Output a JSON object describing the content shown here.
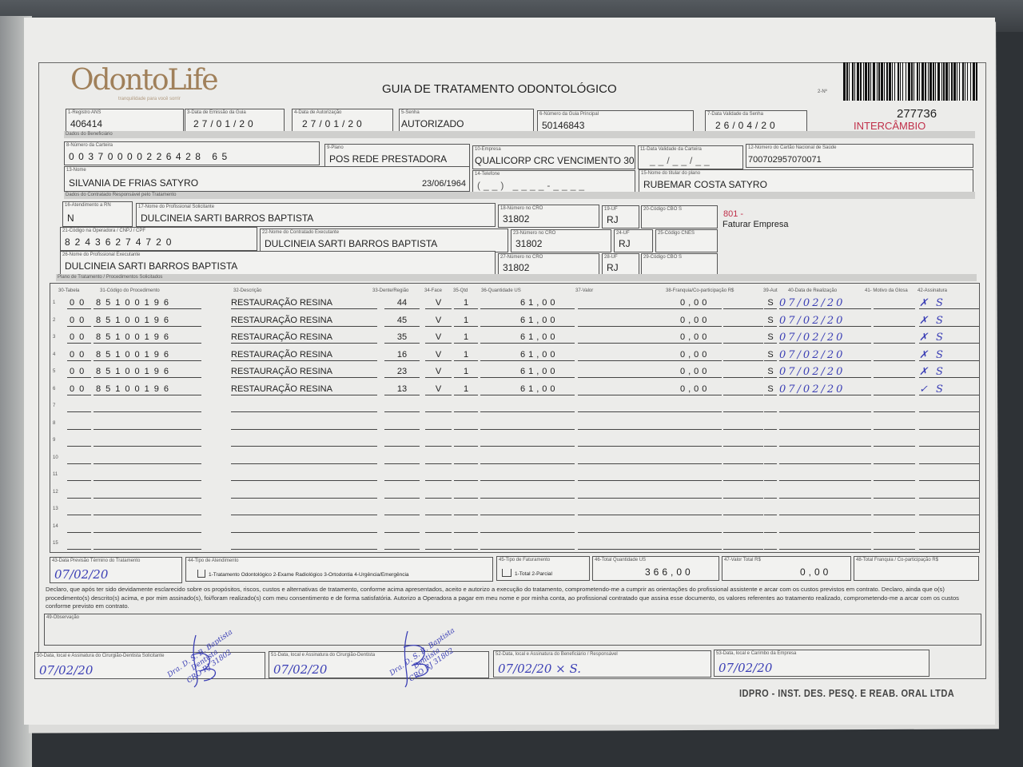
{
  "header": {
    "logo": "OdontoLife",
    "logo_tagline": "tranquilidade para você sorrir",
    "title": "GUIA DE TRATAMENTO ODONTOLÓGICO",
    "guide_no_label": "2-Nº",
    "guide_number": "277736",
    "intercambio": "INTERCÂMBIO",
    "brand_color": "#a0805a",
    "alert_color": "#c0304a"
  },
  "f": {
    "f1": {
      "label": "1-Registro ANS",
      "value": "406414"
    },
    "f3": {
      "label": "3-Data de Emissão da Guia",
      "value": "27/01/20"
    },
    "f4": {
      "label": "4-Data de Autorização",
      "value": "27/01/20"
    },
    "f5": {
      "label": "5-Senha",
      "value": "AUTORIZADO"
    },
    "f6": {
      "label": "6-Número da Guia Principal",
      "value": "50146843"
    },
    "f7": {
      "label": "7-Data Validade da Senha",
      "value": "26/04/20"
    },
    "f8": {
      "label": "8-Número da Carteira",
      "value": "00370000226428 65"
    },
    "f9": {
      "label": "9-Plano",
      "value": "POS REDE PRESTADORA"
    },
    "f10": {
      "label": "10-Empresa",
      "value": "QUALICORP CRC VENCIMENTO 30"
    },
    "f11": {
      "label": "11-Data Validade da Carteira",
      "value": "__/__/__"
    },
    "f12": {
      "label": "12-Número do Cartão Nacional de Saúde",
      "value": "700702957070071"
    },
    "f13": {
      "label": "13-Nome",
      "value": "SILVANIA DE FRIAS SATYRO",
      "birth": "23/06/1964"
    },
    "f14": {
      "label": "14-Telefone",
      "value": "(__) ____-____"
    },
    "f15": {
      "label": "15-Nome do titular do plano",
      "value": "RUBEMAR COSTA SATYRO"
    },
    "f16": {
      "label": "16-Atendimento a RN",
      "value": "N"
    },
    "f17": {
      "label": "17-Nome do Profissional Solicitante",
      "value": "DULCINEIA SARTI BARROS BAPTISTA"
    },
    "f18": {
      "label": "18-Número no CRO",
      "value": "31802"
    },
    "f19": {
      "label": "19-UF",
      "value": "RJ"
    },
    "f20": {
      "label": "20-Código CBO S",
      "value": ""
    },
    "f21": {
      "label": "21-Código na Operadora / CNPJ / CPF",
      "value": "82436274720"
    },
    "f22": {
      "label": "22-Nome do Contratado Executante",
      "value": "DULCINEIA SARTI BARROS BAPTISTA"
    },
    "f23": {
      "label": "23-Número no CRO",
      "value": "31802"
    },
    "f24": {
      "label": "24-UF",
      "value": "RJ"
    },
    "f25": {
      "label": "25-Código CNES",
      "value": ""
    },
    "f26": {
      "label": "26-Nome do Profissional Executante",
      "value": "DULCINEIA SARTI BARROS BAPTISTA"
    },
    "f27": {
      "label": "27-Número no CRO",
      "value": "31802"
    },
    "f28": {
      "label": "28-UF",
      "value": "RJ"
    },
    "f29": {
      "label": "29-Código CBO S",
      "value": ""
    }
  },
  "billing": {
    "code": "801 -",
    "text": "Faturar Empresa"
  },
  "sections": {
    "beneficiario": "Dados do Beneficiário",
    "contratado": "Dados do Contratado Responsável pelo Tratamento",
    "plano": "Plano de Tratamento / Procedimentos Solicitados"
  },
  "procedures": {
    "columns": [
      "30-Tabela",
      "31-Código do Procedimento",
      "32-Descrição",
      "33-Dente/Região",
      "34-Face",
      "35-Qtd",
      "36-Quantidade US",
      "37-Valor",
      "38-Franquia/Co-participação R$",
      "39-Aut",
      "40-Data de Realização",
      "41- Motivo da Glosa",
      "42-Assinatura"
    ],
    "rows": [
      {
        "tabela": "00",
        "codigo": "85100196",
        "descricao": "RESTAURAÇÃO RESINA",
        "dente": "44",
        "face": "V",
        "qtd": "1",
        "us": "61,00",
        "valor": "0,00",
        "franquia": "",
        "aut": "S",
        "data": "07/02/20",
        "glosa": "",
        "assinatura": "✗ S"
      },
      {
        "tabela": "00",
        "codigo": "85100196",
        "descricao": "RESTAURAÇÃO RESINA",
        "dente": "45",
        "face": "V",
        "qtd": "1",
        "us": "61,00",
        "valor": "0,00",
        "franquia": "",
        "aut": "S",
        "data": "07/02/20",
        "glosa": "",
        "assinatura": "✗ S"
      },
      {
        "tabela": "00",
        "codigo": "85100196",
        "descricao": "RESTAURAÇÃO RESINA",
        "dente": "35",
        "face": "V",
        "qtd": "1",
        "us": "61,00",
        "valor": "0,00",
        "franquia": "",
        "aut": "S",
        "data": "07/02/20",
        "glosa": "",
        "assinatura": "✗ S"
      },
      {
        "tabela": "00",
        "codigo": "85100196",
        "descricao": "RESTAURAÇÃO RESINA",
        "dente": "16",
        "face": "V",
        "qtd": "1",
        "us": "61,00",
        "valor": "0,00",
        "franquia": "",
        "aut": "S",
        "data": "07/02/20",
        "glosa": "",
        "assinatura": "✗ S"
      },
      {
        "tabela": "00",
        "codigo": "85100196",
        "descricao": "RESTAURAÇÃO RESINA",
        "dente": "23",
        "face": "V",
        "qtd": "1",
        "us": "61,00",
        "valor": "0,00",
        "franquia": "",
        "aut": "S",
        "data": "07/02/20",
        "glosa": "",
        "assinatura": "✗ S"
      },
      {
        "tabela": "00",
        "codigo": "85100196",
        "descricao": "RESTAURAÇÃO RESINA",
        "dente": "13",
        "face": "V",
        "qtd": "1",
        "us": "61,00",
        "valor": "0,00",
        "franquia": "",
        "aut": "S",
        "data": "07/02/20",
        "glosa": "",
        "assinatura": "✓ S"
      }
    ],
    "row_numbers": [
      "1",
      "2",
      "3",
      "4",
      "5",
      "6",
      "7",
      "8",
      "9",
      "10",
      "11",
      "12",
      "13",
      "14",
      "15"
    ]
  },
  "bottom": {
    "f43": {
      "label": "43-Data Previsão Término do Tratamento",
      "value": "07/02/20"
    },
    "f44": {
      "label": "44-Tipo de Atendimento",
      "options": "1-Tratamento Odontológico  2-Exame Radiológico  3-Ortodontia  4-Urgência/Emergência"
    },
    "f45": {
      "label": "45-Tipo de Faturamento",
      "options": "1-Total  2-Parcial"
    },
    "f46": {
      "label": "46-Total Quantidade US",
      "value": "366,00"
    },
    "f47": {
      "label": "47-Valor Total R$",
      "value": "0,00"
    },
    "f48": {
      "label": "48-Total Franquia / Co-participação R$",
      "value": ""
    }
  },
  "declaration": "Declaro, que após ter sido devidamente esclarecido sobre os propósitos, riscos, custos e alternativas de tratamento, conforme acima apresentados, aceito e autorizo a execução do tratamento, comprometendo-me a cumprir as orientações do profissional assistente e arcar com os custos previstos em contrato. Declaro, ainda que o(s) procedimento(s) descrito(s) acima, e por mim assinado(s), foi/foram realizado(s) com meu consentimento e de forma satisfatória. Autorizo a Operadora a pagar em meu nome e por minha conta, ao profissional contratado que assina esse documento, os valores referentes ao tratamento realizado, comprometendo-me a arcar com os custos conforme previsto em contrato.",
  "observacao": {
    "label": "49-Observação",
    "value": ""
  },
  "signatures": {
    "f50": {
      "label": "50-Data, local e Assinatura do Cirurgião-Dentista Solicitante",
      "value": "07/02/20"
    },
    "f51": {
      "label": "51-Data, local e Assinatura do Cirurgião-Dentista",
      "value": "07/02/20"
    },
    "f52": {
      "label": "52-Data, local e Assinatura do Beneficiário / Responsável",
      "value": "07/02/20 × S."
    },
    "f53": {
      "label": "53-Data, local e Carimbo da Empresa",
      "value": "07/02/20"
    }
  },
  "stamp": {
    "line1": "Dra. D. S. B. Baptista",
    "line2": "Dentista",
    "line3": "CRO RJ 31802"
  },
  "footer": "IDPRO - INST. DES. PESQ. E REAB. ORAL LTDA",
  "colors": {
    "handwriting": "#3b3fb5"
  }
}
